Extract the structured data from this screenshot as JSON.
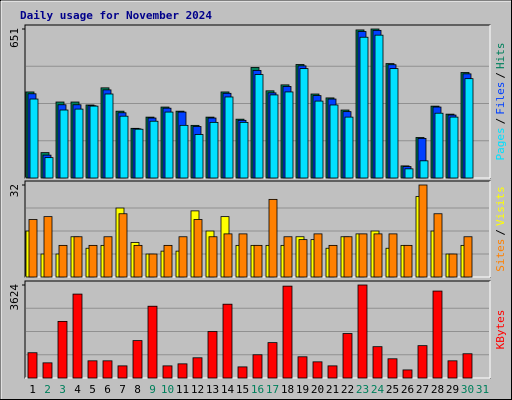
{
  "chart_data": [
    {
      "type": "bar",
      "title": "Daily usage for November 2024",
      "legend_separator": "/",
      "ylim": [
        0,
        651
      ],
      "yticks": [
        651
      ],
      "series": [
        {
          "name": "Hits",
          "color": "#00805c",
          "values": [
            376,
            111,
            332,
            332,
            319,
            394,
            292,
            217,
            266,
            310,
            292,
            230,
            266,
            376,
            257,
            483,
            381,
            407,
            496,
            367,
            350,
            297,
            647,
            651,
            500,
            53,
            177,
            314,
            279,
            461,
            null
          ]
        },
        {
          "name": "Files",
          "color": "#0040ff",
          "values": [
            368,
            100,
            320,
            320,
            316,
            385,
            285,
            215,
            262,
            305,
            288,
            225,
            262,
            370,
            252,
            470,
            372,
            400,
            490,
            360,
            345,
            290,
            640,
            645,
            495,
            50,
            173,
            310,
            275,
            455,
            null
          ]
        },
        {
          "name": "Pages",
          "color": "#00e0ff",
          "values": [
            345,
            89,
            297,
            301,
            314,
            367,
            270,
            213,
            248,
            288,
            230,
            190,
            243,
            354,
            243,
            452,
            363,
            376,
            478,
            336,
            319,
            266,
            615,
            624,
            478,
            40,
            75,
            283,
            266,
            434,
            null
          ]
        }
      ]
    },
    {
      "type": "bar",
      "legend_separator": "/",
      "ylim": [
        0,
        32
      ],
      "yticks": [
        32
      ],
      "series": [
        {
          "name": "Visits",
          "color": "#ffff00",
          "values": [
            16,
            8,
            8,
            14,
            10,
            11,
            24,
            12,
            8,
            9,
            9,
            23,
            16,
            21,
            11,
            11,
            11,
            11,
            14,
            13,
            10,
            14,
            15,
            16,
            10,
            11,
            28,
            16,
            8,
            11,
            null
          ]
        },
        {
          "name": "Sites",
          "color": "#ff8000",
          "values": [
            20,
            21,
            11,
            14,
            11,
            14,
            22,
            11,
            8,
            11,
            14,
            20,
            14,
            15,
            15,
            11,
            27,
            14,
            13,
            15,
            11,
            14,
            15,
            15,
            15,
            11,
            32,
            22,
            8,
            14,
            null
          ]
        }
      ]
    },
    {
      "type": "bar",
      "ylim": [
        0,
        3624
      ],
      "yticks": [
        3624
      ],
      "categories": [
        "1",
        "2",
        "3",
        "4",
        "5",
        "6",
        "7",
        "8",
        "9",
        "10",
        "11",
        "12",
        "13",
        "14",
        "15",
        "16",
        "17",
        "18",
        "19",
        "20",
        "21",
        "22",
        "23",
        "24",
        "25",
        "26",
        "27",
        "28",
        "29",
        "30",
        "31"
      ],
      "category_colors": [
        "#000000",
        "#00805c",
        "#00805c",
        "#000000",
        "#000000",
        "#000000",
        "#000000",
        "#000000",
        "#00805c",
        "#00805c",
        "#000000",
        "#000000",
        "#000000",
        "#000000",
        "#000000",
        "#00805c",
        "#00805c",
        "#000000",
        "#000000",
        "#000000",
        "#000000",
        "#000000",
        "#00805c",
        "#00805c",
        "#000000",
        "#000000",
        "#000000",
        "#000000",
        "#000000",
        "#00805c",
        "#00805c"
      ],
      "series": [
        {
          "name": "KBytes",
          "color": "#ff0000",
          "values": [
            985,
            591,
            2206,
            3270,
            670,
            670,
            473,
            1458,
            2797,
            473,
            552,
            788,
            1812,
            2876,
            433,
            906,
            1379,
            3580,
            827,
            630,
            473,
            1733,
            3624,
            1221,
            749,
            315,
            1261,
            3388,
            670,
            945,
            null
          ]
        }
      ]
    }
  ]
}
